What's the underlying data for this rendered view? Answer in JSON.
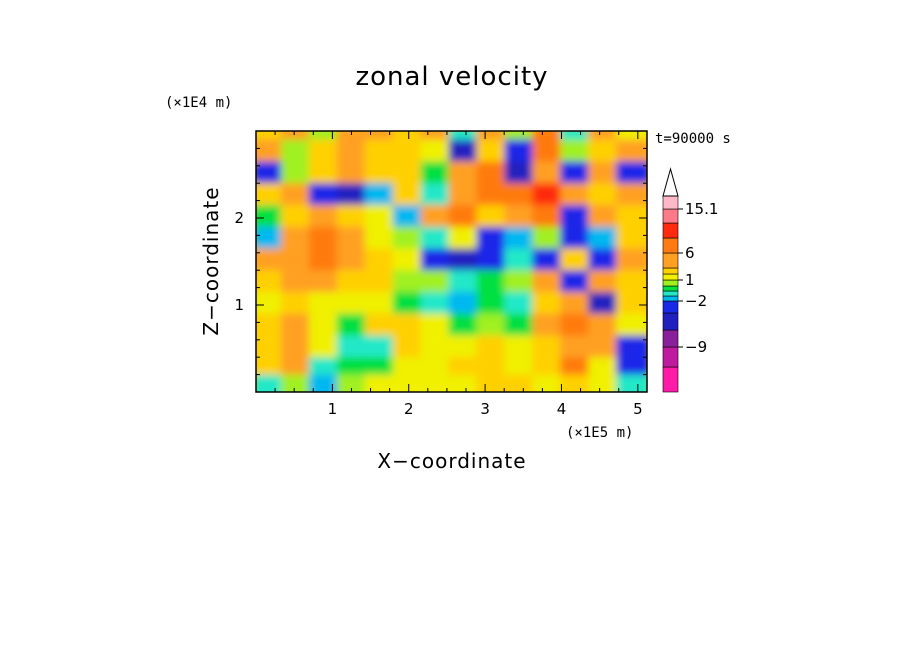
{
  "chart_data": {
    "type": "heatmap",
    "title": "zonal velocity",
    "xlabel": "X−coordinate",
    "ylabel": "Z−coordinate",
    "x_scale_label": "(×1E5 m)",
    "y_scale_label": "(×1E4 m)",
    "time_label": "t=90000 s",
    "xlim": [
      0,
      5.12
    ],
    "ylim": [
      0,
      3.0
    ],
    "x_ticks": [
      "1",
      "2",
      "3",
      "4",
      "5"
    ],
    "y_ticks": [
      "1",
      "2"
    ],
    "colorbar": {
      "labels": [
        "15.1",
        "6",
        "1",
        "−2",
        "−9"
      ],
      "colors": [
        "#ff1aa8",
        "#c01aa0",
        "#8a1f9c",
        "#2020c0",
        "#1a28e8",
        "#00b8f0",
        "#22e8c8",
        "#00e040",
        "#a0f020",
        "#f0f000",
        "#ffd000",
        "#ffa020",
        "#ff7a10",
        "#ff2a10",
        "#ff7a88",
        "#ffb8c8",
        "#ffffff"
      ]
    },
    "bands": [
      {
        "z": 2.9,
        "levels": [
          10,
          11,
          8,
          11,
          11,
          10,
          11,
          6,
          11,
          8,
          12,
          6,
          11,
          9
        ]
      },
      {
        "z": 2.75,
        "levels": [
          11,
          8,
          10,
          11,
          10,
          10,
          9,
          3,
          10,
          4,
          12,
          8,
          10,
          11
        ]
      },
      {
        "z": 2.5,
        "levels": [
          4,
          8,
          10,
          11,
          10,
          10,
          7,
          11,
          12,
          3,
          11,
          4,
          11,
          4
        ]
      },
      {
        "z": 2.25,
        "levels": [
          10,
          11,
          4,
          3,
          5,
          10,
          6,
          11,
          12,
          12,
          13,
          11,
          10,
          11
        ]
      },
      {
        "z": 2.0,
        "levels": [
          7,
          10,
          11,
          10,
          9,
          5,
          11,
          12,
          10,
          11,
          12,
          4,
          11,
          10
        ]
      },
      {
        "z": 1.75,
        "levels": [
          5,
          11,
          12,
          11,
          9,
          8,
          6,
          9,
          4,
          5,
          8,
          4,
          5,
          10
        ]
      },
      {
        "z": 1.5,
        "levels": [
          11,
          11,
          12,
          11,
          10,
          9,
          4,
          3,
          4,
          6,
          4,
          10,
          4,
          11
        ]
      },
      {
        "z": 1.25,
        "levels": [
          10,
          11,
          11,
          10,
          10,
          8,
          8,
          6,
          7,
          8,
          11,
          4,
          11,
          10
        ]
      },
      {
        "z": 1.0,
        "levels": [
          9,
          10,
          9,
          9,
          9,
          7,
          6,
          5,
          7,
          6,
          10,
          11,
          3,
          10
        ]
      },
      {
        "z": 0.75,
        "levels": [
          10,
          11,
          9,
          7,
          10,
          10,
          9,
          7,
          8,
          7,
          11,
          12,
          11,
          9
        ]
      },
      {
        "z": 0.5,
        "levels": [
          10,
          11,
          9,
          6,
          6,
          10,
          9,
          9,
          10,
          9,
          10,
          11,
          11,
          4
        ]
      },
      {
        "z": 0.25,
        "levels": [
          10,
          11,
          6,
          7,
          7,
          9,
          9,
          10,
          10,
          9,
          10,
          12,
          9,
          4
        ]
      },
      {
        "z": 0.05,
        "levels": [
          6,
          8,
          5,
          8,
          9,
          9,
          9,
          9,
          10,
          10,
          9,
          10,
          9,
          6
        ]
      }
    ]
  }
}
